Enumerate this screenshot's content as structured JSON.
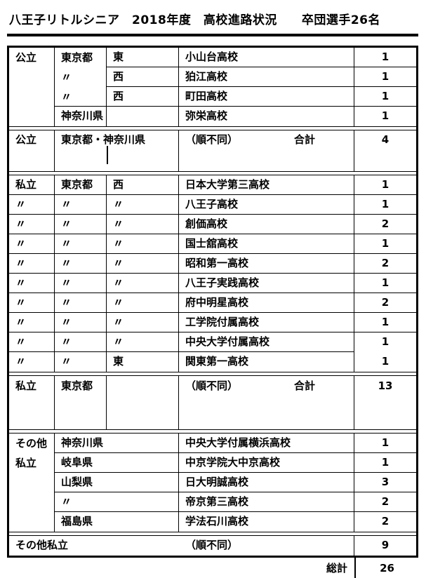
{
  "page": {
    "title": "八王子リトルシニア　2018年度　高校進路状況　　卒団選手26名"
  },
  "table": {
    "public": {
      "category": "公立",
      "rows": [
        {
          "pref": "東京都",
          "area": "東",
          "school": "小山台高校",
          "count": "1"
        },
        {
          "pref": "〃",
          "area": "西",
          "school": "狛江高校",
          "count": "1"
        },
        {
          "pref": "〃",
          "area": "西",
          "school": "町田高校",
          "count": "1"
        },
        {
          "pref": "神奈川県",
          "area": "",
          "school": "弥栄高校",
          "count": "1"
        }
      ],
      "summary": {
        "category": "公立",
        "region": "東京都・神奈川県",
        "note": "（順不同）",
        "total_label": "合計",
        "count": "4"
      }
    },
    "private": {
      "rows": [
        {
          "cat": "私立",
          "pref": "東京都",
          "area": "西",
          "school": "日本大学第三高校",
          "count": "1"
        },
        {
          "cat": "〃",
          "pref": "〃",
          "area": "〃",
          "school": "八王子高校",
          "count": "1"
        },
        {
          "cat": "〃",
          "pref": "〃",
          "area": "〃",
          "school": "創価高校",
          "count": "2"
        },
        {
          "cat": "〃",
          "pref": "〃",
          "area": "〃",
          "school": "国士舘高校",
          "count": "1"
        },
        {
          "cat": "〃",
          "pref": "〃",
          "area": "〃",
          "school": "昭和第一高校",
          "count": "2"
        },
        {
          "cat": "〃",
          "pref": "〃",
          "area": "〃",
          "school": "八王子実践高校",
          "count": "1"
        },
        {
          "cat": "〃",
          "pref": "〃",
          "area": "〃",
          "school": "府中明星高校",
          "count": "2"
        },
        {
          "cat": "〃",
          "pref": "〃",
          "area": "〃",
          "school": "工学院付属高校",
          "count": "1"
        },
        {
          "cat": "〃",
          "pref": "〃",
          "area": "〃",
          "school": "中央大学付属高校",
          "count": "1"
        },
        {
          "cat": "〃",
          "pref": "〃",
          "area": "東",
          "school": "関東第一高校",
          "count": "1"
        }
      ],
      "summary": {
        "category": "私立",
        "region": "東京都",
        "note": "（順不同）",
        "total_label": "合計",
        "count": "13"
      }
    },
    "other_private": {
      "category_line1": "その他",
      "category_line2": "私立",
      "rows": [
        {
          "pref": "神奈川県",
          "school": "中央大学付属横浜高校",
          "count": "1"
        },
        {
          "pref": "岐阜県",
          "school": "中京学院大中京高校",
          "count": "1"
        },
        {
          "pref": "山梨県",
          "school": "日大明誠高校",
          "count": "3"
        },
        {
          "pref": "〃",
          "school": "帝京第三高校",
          "count": "2"
        },
        {
          "pref": "福島県",
          "school": "学法石川高校",
          "count": "2"
        }
      ],
      "summary": {
        "category": "その他私立",
        "note": "（順不同）",
        "count": "9"
      }
    },
    "grand_total": {
      "label": "総計",
      "count": "26"
    }
  }
}
